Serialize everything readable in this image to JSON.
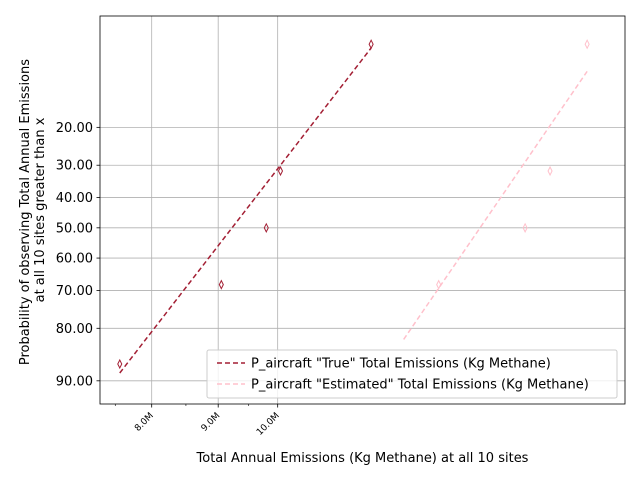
{
  "chart_data": {
    "type": "scatter",
    "xlabel": "Total Annual Emissions (Kg Methane) at all 10 sites",
    "ylabel_lines": [
      "Probability of observing Total Annual Emissions",
      "at all 10 sites greater than x"
    ],
    "x_scale": "log",
    "y_scale": "probit",
    "xlim": [
      7300000,
      18500000
    ],
    "ylim": [
      93,
      3.8
    ],
    "grid": true,
    "legend_position": "lower right",
    "x_major_ticks": [
      {
        "value": 8000000,
        "label": "8.0M"
      },
      {
        "value": 9000000,
        "label": "9.0M"
      },
      {
        "value": 10000000,
        "label": "10.0M"
      }
    ],
    "x_minor_ticks": [
      7500000,
      8500000,
      9500000
    ],
    "y_ticks": [
      {
        "value": 20,
        "label": "20.00"
      },
      {
        "value": 30,
        "label": "30.00"
      },
      {
        "value": 40,
        "label": "40.00"
      },
      {
        "value": 50,
        "label": "50.00"
      },
      {
        "value": 60,
        "label": "60.00"
      },
      {
        "value": 70,
        "label": "70.00"
      },
      {
        "value": 80,
        "label": "80.00"
      },
      {
        "value": 90,
        "label": "90.00"
      }
    ],
    "series": [
      {
        "name": "P_aircraft \"True\" Total Emissions (Kg Methane)",
        "color": "#a31f34",
        "marker": "thin_diamond",
        "points": [
          {
            "x": 7560000,
            "y": 87.3
          },
          {
            "x": 9050000,
            "y": 68.3
          },
          {
            "x": 9800000,
            "y": 50.0
          },
          {
            "x": 10050000,
            "y": 31.7
          },
          {
            "x": 11800000,
            "y": 6.2
          }
        ],
        "fit_line": [
          {
            "x": 7560000,
            "y": 88.8
          },
          {
            "x": 11800000,
            "y": 6.6
          }
        ]
      },
      {
        "name": "P_aircraft \"Estimated\" Total Emissions (Kg Methane)",
        "color": "#ffc0cb",
        "marker": "thin_diamond",
        "points": [
          {
            "x": 13300000,
            "y": 68.3
          },
          {
            "x": 15500000,
            "y": 50.0
          },
          {
            "x": 16200000,
            "y": 31.7
          },
          {
            "x": 17300000,
            "y": 6.2
          }
        ],
        "fit_line": [
          {
            "x": 12500000,
            "y": 82.5
          },
          {
            "x": 17300000,
            "y": 9.5
          }
        ]
      }
    ]
  }
}
